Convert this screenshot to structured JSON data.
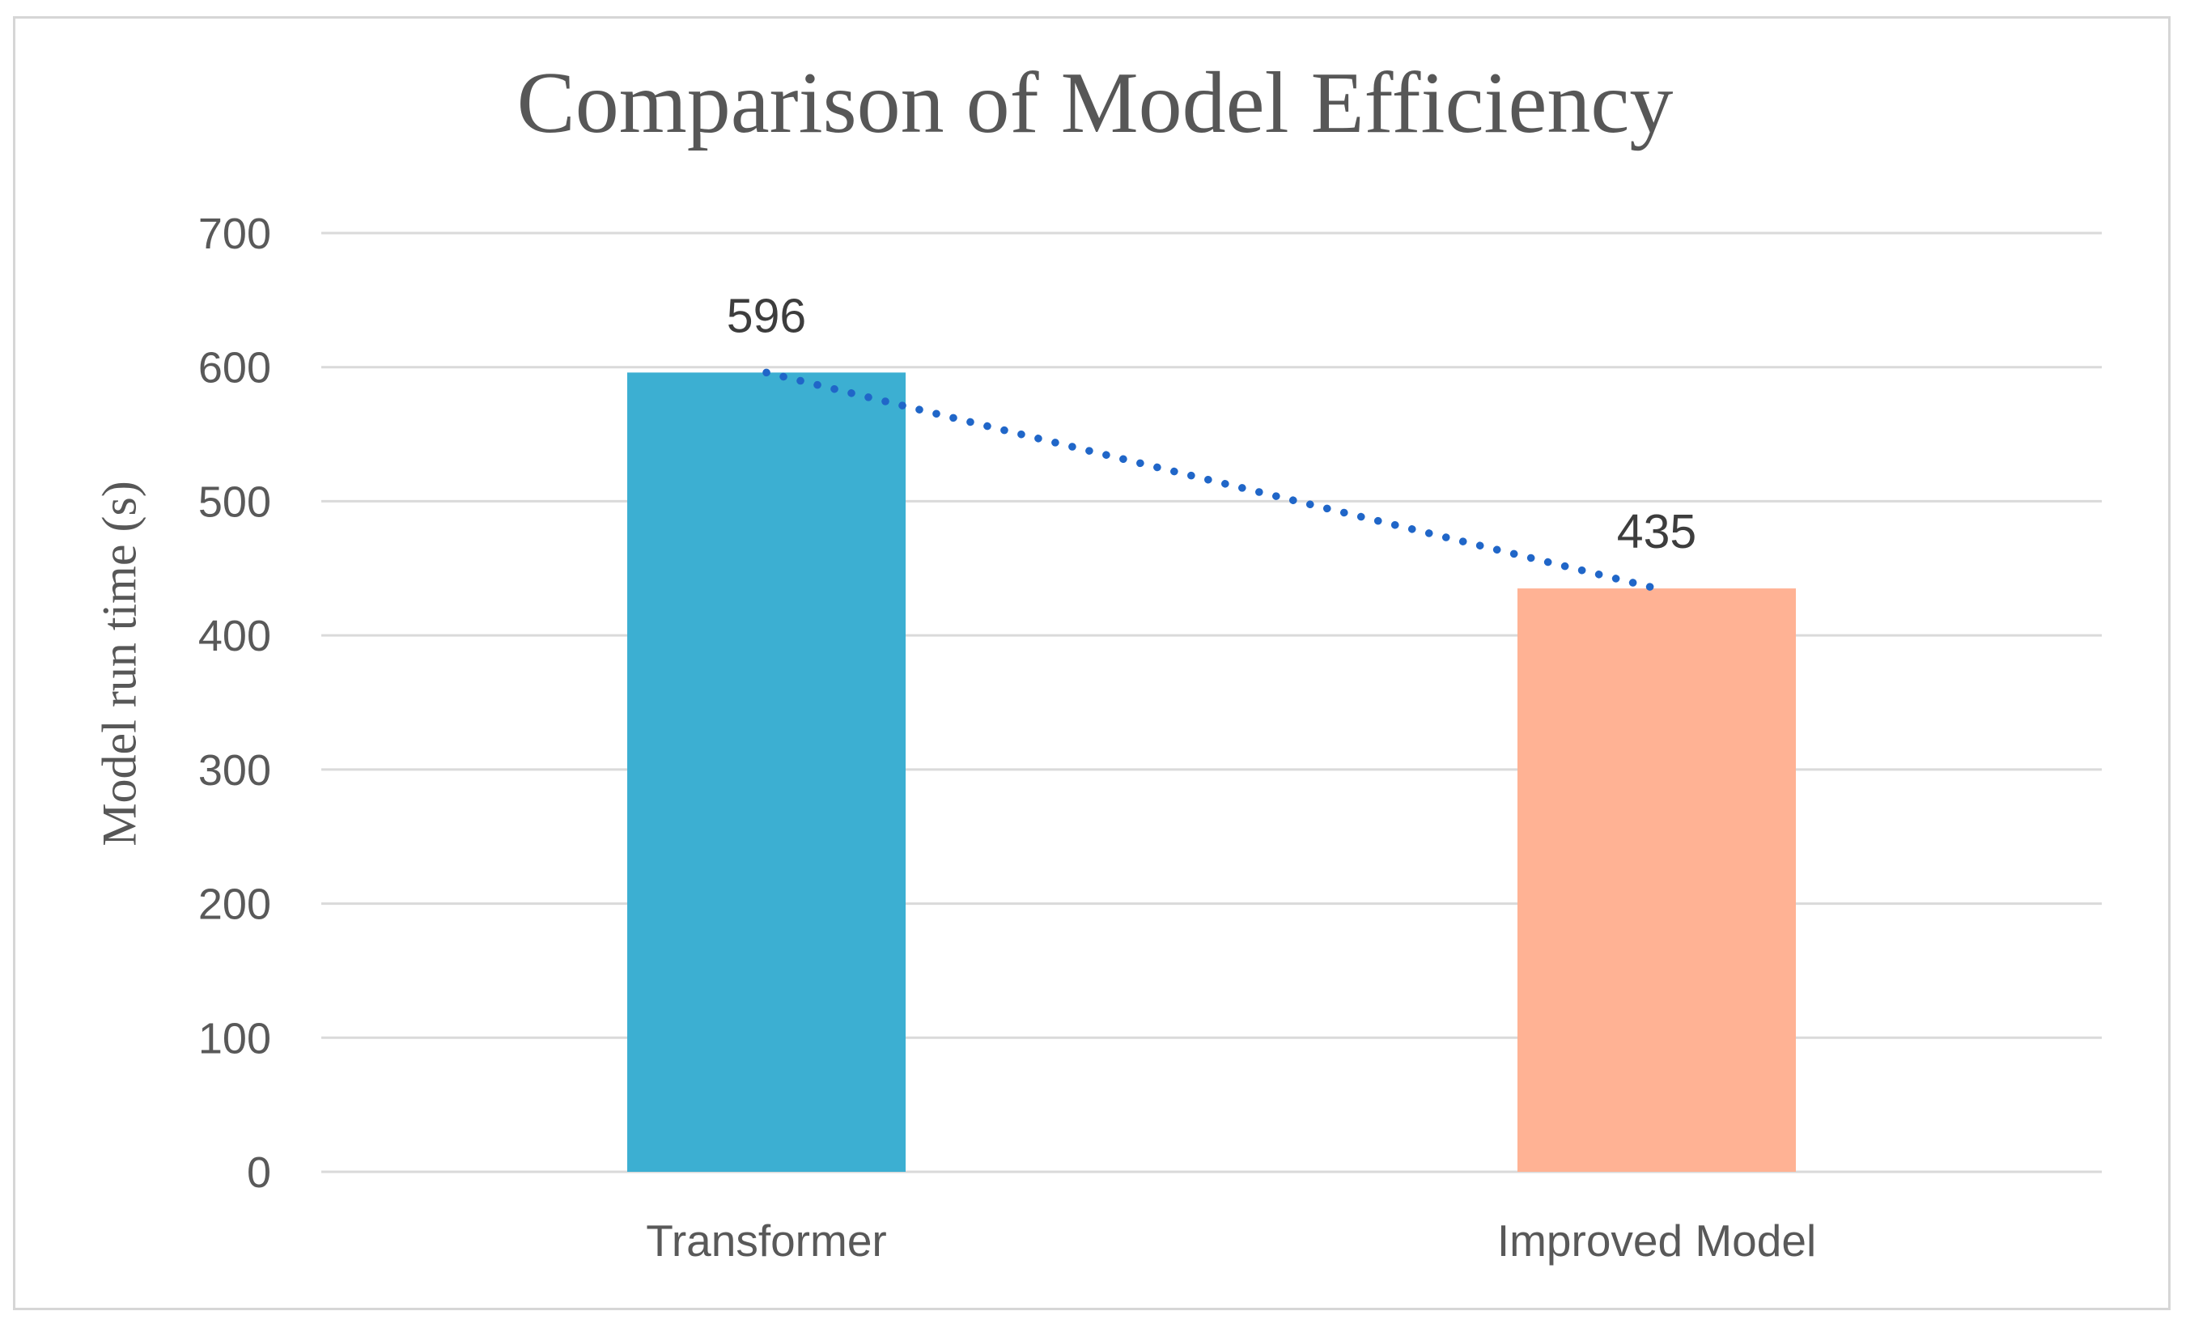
{
  "chart_data": {
    "type": "bar",
    "title": "Comparison of Model Efficiency",
    "ylabel": "Model run time (s)",
    "xlabel": "",
    "categories": [
      "Transformer",
      "Improved Model"
    ],
    "series": [
      {
        "name": "Model run time",
        "values": [
          596,
          435
        ]
      }
    ],
    "data_labels": [
      "596",
      "435"
    ],
    "bar_colors": [
      "#3cafd2",
      "#ffb294"
    ],
    "trendline": {
      "style": "dotted",
      "color": "#2066c8",
      "connects_values": [
        596,
        435
      ]
    },
    "ylim": [
      0,
      700
    ],
    "ytick_step": 100,
    "yticks": [
      700,
      600,
      500,
      400,
      300,
      200,
      100,
      0
    ],
    "grid": true,
    "legend_position": "none",
    "styles": {
      "grid_color": "#dadada",
      "tick_label_color": "#595959",
      "category_label_color": "#595959",
      "data_label_color": "#3d3d3d",
      "title_color": "#575757",
      "axis_title_color": "#575757",
      "background_color": "#ffffff",
      "figure_border_color": "#d6d6d6"
    }
  }
}
